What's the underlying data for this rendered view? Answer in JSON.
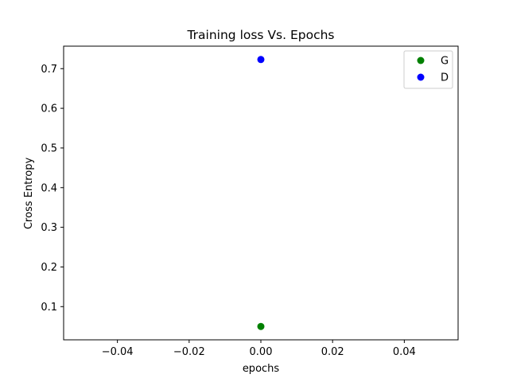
{
  "chart_data": {
    "type": "scatter",
    "title": "Training loss Vs. Epochs",
    "xlabel": "epochs",
    "ylabel": "Cross Entropy",
    "xlim": [
      -0.055,
      0.055
    ],
    "ylim": [
      0.0163,
      0.7567
    ],
    "xticks": [
      -0.04,
      -0.02,
      0.0,
      0.02,
      0.04
    ],
    "xtick_labels": [
      "−0.04",
      "−0.02",
      "0.00",
      "0.02",
      "0.04"
    ],
    "yticks": [
      0.1,
      0.2,
      0.3,
      0.4,
      0.5,
      0.6,
      0.7
    ],
    "ytick_labels": [
      "0.1",
      "0.2",
      "0.3",
      "0.4",
      "0.5",
      "0.6",
      "0.7"
    ],
    "grid": false,
    "legend_position": "top-right",
    "series": [
      {
        "name": "G",
        "color": "#008000",
        "x": [
          0.0
        ],
        "y": [
          0.05
        ]
      },
      {
        "name": "D",
        "color": "#0000ff",
        "x": [
          0.0
        ],
        "y": [
          0.723
        ]
      }
    ]
  }
}
